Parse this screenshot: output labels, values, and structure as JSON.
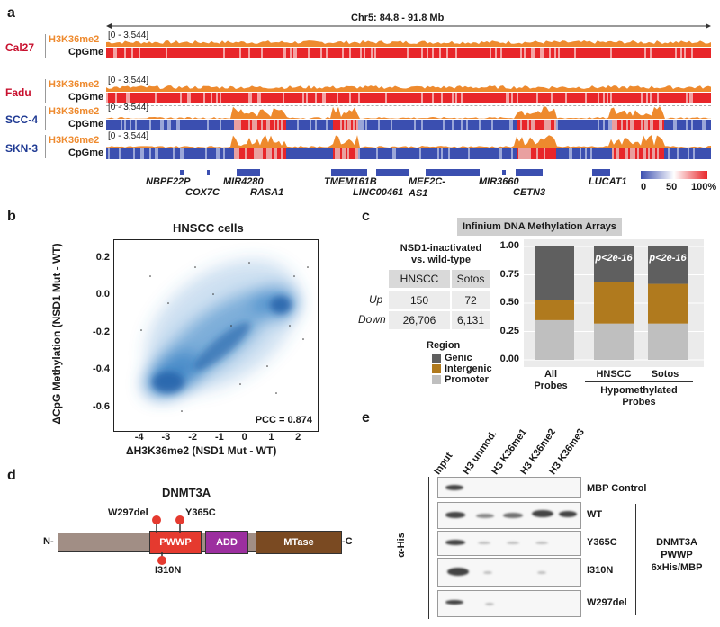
{
  "panel_labels": {
    "a": "a",
    "b": "b",
    "c": "c",
    "d": "d",
    "e": "e"
  },
  "panel_a": {
    "region": "Chr5: 84.8 - 91.8 Mb",
    "tracks": [
      {
        "cell": "Cal27",
        "cell_color": "#c8102e",
        "mark": "H3K36me2",
        "meth": "CpGme",
        "range": "[0 - 3,544]"
      },
      {
        "cell": "Fadu",
        "cell_color": "#c8102e",
        "mark": "H3K36me2",
        "meth": "CpGme",
        "range": "[0 - 3,544]"
      },
      {
        "cell": "SCC-4",
        "cell_color": "#1f3a93",
        "mark": "H3K36me2",
        "meth": "CpGme",
        "range": "[0 - 3,544]"
      },
      {
        "cell": "SKN-3",
        "cell_color": "#1f3a93",
        "mark": "H3K36me2",
        "meth": "CpGme",
        "range": "[0 - 3,544]"
      }
    ],
    "genes": [
      "NBPF22P",
      "COX7C",
      "MIR4280",
      "RASA1",
      "TMEM161B",
      "LINC00461",
      "MEF2C-AS1",
      "MIR3660",
      "CETN3",
      "LUCAT1"
    ],
    "legend": {
      "min": "0",
      "mid": "50",
      "max": "100%"
    },
    "colors": {
      "h3k36": "#ee8a2e",
      "high": "#e8262a",
      "low": "#3b4fb0"
    }
  },
  "panel_b": {
    "title": "HNSCC cells",
    "xlabel": "ΔH3K36me2 (NSD1 Mut - WT)",
    "ylabel": "ΔCpG Methylation (NSD1 Mut - WT)",
    "pcc": "PCC = 0.874",
    "xticks": [
      "-4",
      "-3",
      "-2",
      "-1",
      "0",
      "1",
      "2"
    ],
    "yticks": [
      "0.2",
      "0.0",
      "-0.2",
      "-0.4",
      "-0.6"
    ]
  },
  "panel_c": {
    "title": "Infinium DNA Methylation Arrays",
    "subtitle_1": "NSD1-inactivated",
    "subtitle_2": "vs. wild-type",
    "table": {
      "headers": [
        "HNSCC",
        "Sotos"
      ],
      "rows": [
        {
          "label": "Up",
          "values": [
            "150",
            "72"
          ]
        },
        {
          "label": "Down",
          "values": [
            "26,706",
            "6,131"
          ]
        }
      ]
    },
    "legend_title": "Region",
    "pvalue": "p<2e-16",
    "group_label_1": "Hypomethylated",
    "group_label_2": "Probes",
    "cat1_line1": "All",
    "cat1_line2": "Probes"
  },
  "chart_data": {
    "type": "bar",
    "stacked": true,
    "categories": [
      "All Probes",
      "HNSCC",
      "Sotos"
    ],
    "series": [
      {
        "name": "Promoter",
        "color": "#bfbfbf",
        "values": [
          0.35,
          0.32,
          0.32
        ]
      },
      {
        "name": "Intergenic",
        "color": "#b07a1e",
        "values": [
          0.18,
          0.37,
          0.35
        ]
      },
      {
        "name": "Genic",
        "color": "#5f5f5f",
        "values": [
          0.47,
          0.31,
          0.33
        ]
      }
    ],
    "ylim": [
      0,
      1
    ],
    "yticks": [
      "0.00",
      "0.25",
      "0.50",
      "0.75",
      "1.00"
    ]
  },
  "panel_d": {
    "title": "DNMT3A",
    "n_term": "N-",
    "c_term": "-C",
    "domains": [
      "PWWP",
      "ADD",
      "MTase"
    ],
    "mutations_top": [
      "W297del",
      "Y365C"
    ],
    "mutation_bottom": "I310N"
  },
  "panel_e": {
    "lanes": [
      "Input",
      "H3 unmod.",
      "H3 K36me1",
      "H3 K36me2",
      "H3 K36me3"
    ],
    "rows": [
      "MBP Control",
      "WT",
      "Y365C",
      "I310N",
      "W297del"
    ],
    "axis_label": "α-His",
    "group_1": "DNMT3A",
    "group_2": "PWWP",
    "group_3": "6xHis/MBP"
  }
}
